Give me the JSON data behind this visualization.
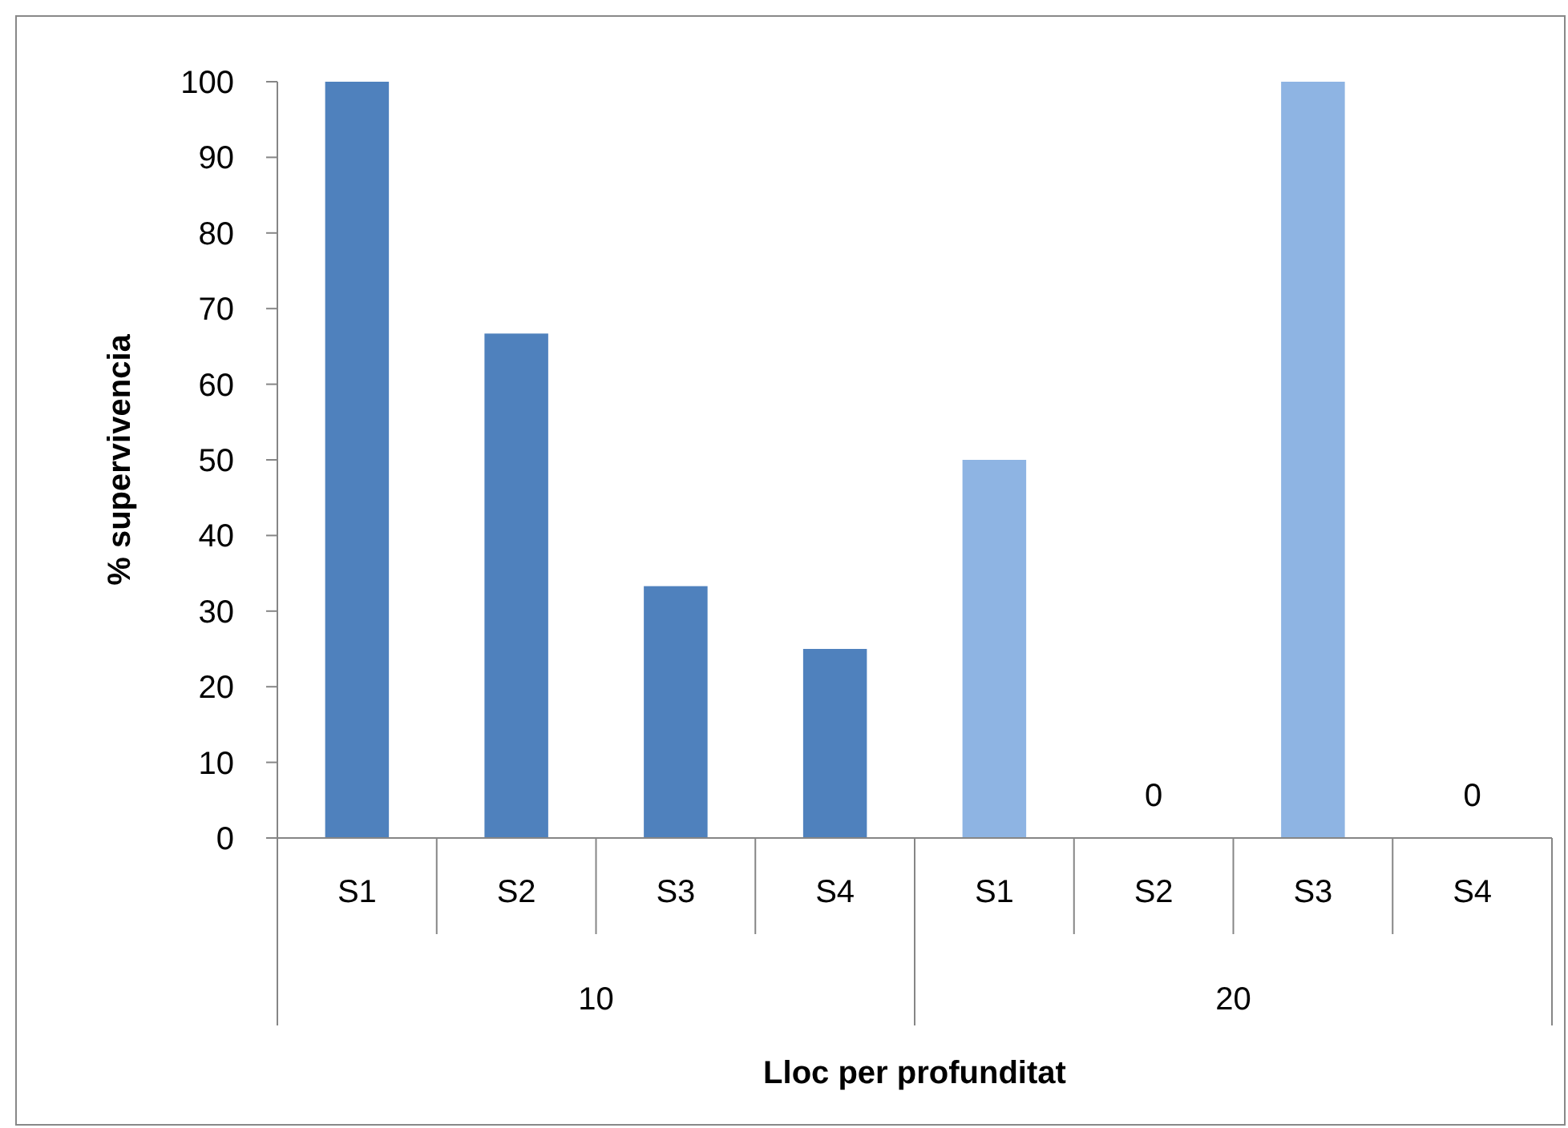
{
  "chart_data": {
    "type": "bar",
    "ylabel": "% supervivencia",
    "xlabel": "Lloc per profunditat",
    "categories": [
      "S1",
      "S2",
      "S3",
      "S4",
      "S1",
      "S2",
      "S3",
      "S4"
    ],
    "values": [
      100,
      66.7,
      33.3,
      25,
      50,
      0,
      100,
      0
    ],
    "colors": [
      "#4f81bd",
      "#4f81bd",
      "#4f81bd",
      "#4f81bd",
      "#8eb4e3",
      "#8eb4e3",
      "#8eb4e3",
      "#8eb4e3"
    ],
    "value_labels": [
      null,
      null,
      null,
      null,
      null,
      "0",
      null,
      "0"
    ],
    "annotations": [
      "10",
      "20"
    ],
    "ylim": [
      0,
      100
    ],
    "yticks": [
      0,
      10,
      20,
      30,
      40,
      50,
      60,
      70,
      80,
      90,
      100
    ]
  }
}
